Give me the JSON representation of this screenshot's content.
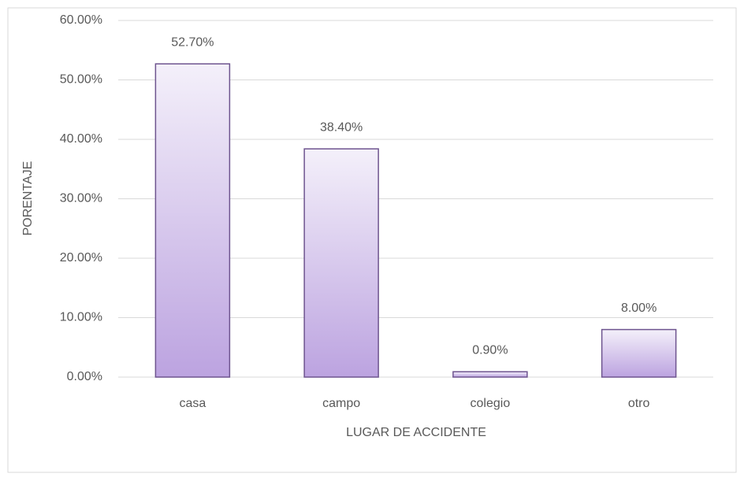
{
  "chart_data": {
    "type": "bar",
    "x_label": "LUGAR DE ACCIDENTE",
    "y_label": "PORENTAJE",
    "categories": [
      "casa",
      "campo",
      "colegio",
      "otro"
    ],
    "values": [
      52.7,
      38.4,
      0.9,
      8.0
    ],
    "value_labels": [
      "52.70%",
      "38.40%",
      "0.90%",
      "8.00%"
    ],
    "color": "#bca3e0",
    "edge_color": "#6e548f",
    "ylim": [
      0,
      60
    ],
    "yticks": [
      {
        "value": 0,
        "label": "0.00%"
      },
      {
        "value": 10,
        "label": "10.00%"
      },
      {
        "value": 20,
        "label": "20.00%"
      },
      {
        "value": 30,
        "label": "30.00%"
      },
      {
        "value": 40,
        "label": "40.00%"
      },
      {
        "value": 50,
        "label": "50.00%"
      },
      {
        "value": 60,
        "label": "60.00%"
      }
    ],
    "grid": true
  }
}
